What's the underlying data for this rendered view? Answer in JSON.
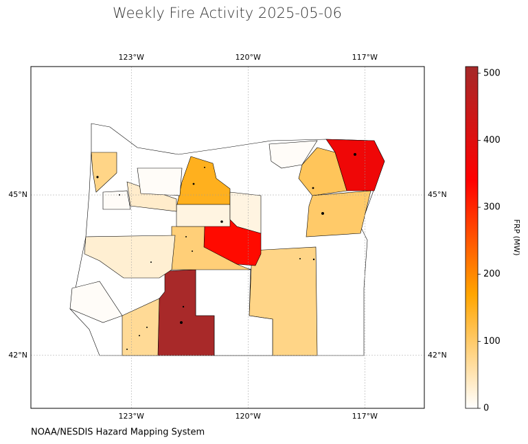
{
  "map": {
    "title": "Weekly Fire Activity 2025-05-06",
    "footer": "NOAA/NESDIS Hazard Mapping System",
    "xlim": [
      -125.58,
      -115.47
    ],
    "ylim": [
      41.01,
      47.4
    ],
    "xticks": [
      {
        "value": -123,
        "label": "123°W"
      },
      {
        "value": -120,
        "label": "120°W"
      },
      {
        "value": -117,
        "label": "117°W"
      }
    ],
    "yticks": [
      {
        "value": 42,
        "label": "42°N"
      },
      {
        "value": 45,
        "label": "45°N"
      }
    ],
    "grid": true,
    "colorbar": {
      "label": "FRP (MW)",
      "clim": [
        0,
        510
      ],
      "ticks": [
        0,
        100,
        200,
        300,
        400,
        500
      ],
      "colormap": [
        "#ffffff",
        "#ffa500",
        "#ff0000",
        "#a52a2a"
      ]
    },
    "region_values": [
      370,
      110,
      100,
      80,
      0,
      505,
      70,
      330,
      90,
      150,
      80,
      20,
      30,
      20,
      35,
      5,
      5,
      5,
      5
    ]
  }
}
